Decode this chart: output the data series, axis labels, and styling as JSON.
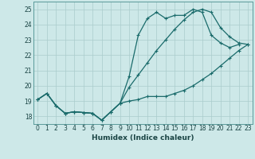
{
  "xlabel": "Humidex (Indice chaleur)",
  "background_color": "#cde8e8",
  "grid_color": "#aacccc",
  "line_color": "#1a6b6b",
  "xlim": [
    -0.5,
    23.5
  ],
  "ylim": [
    17.5,
    25.5
  ],
  "xticks": [
    0,
    1,
    2,
    3,
    4,
    5,
    6,
    7,
    8,
    9,
    10,
    11,
    12,
    13,
    14,
    15,
    16,
    17,
    18,
    19,
    20,
    21,
    22,
    23
  ],
  "yticks": [
    18,
    19,
    20,
    21,
    22,
    23,
    24,
    25
  ],
  "series1_x": [
    0,
    1,
    2,
    3,
    4,
    5,
    6,
    7,
    8,
    9,
    10,
    11,
    12,
    13,
    14,
    15,
    16,
    17,
    18,
    19,
    20,
    21,
    22,
    23
  ],
  "series1_y": [
    19.1,
    19.5,
    18.7,
    18.2,
    18.3,
    18.25,
    18.2,
    17.75,
    18.3,
    18.85,
    19.0,
    19.1,
    19.3,
    19.3,
    19.3,
    19.5,
    19.7,
    20.0,
    20.4,
    20.8,
    21.3,
    21.8,
    22.3,
    22.7
  ],
  "series2_x": [
    0,
    1,
    2,
    3,
    4,
    5,
    6,
    7,
    8,
    9,
    10,
    11,
    12,
    13,
    14,
    15,
    16,
    17,
    18,
    19,
    20,
    21,
    22,
    23
  ],
  "series2_y": [
    19.1,
    19.5,
    18.7,
    18.2,
    18.3,
    18.25,
    18.2,
    17.75,
    18.3,
    18.85,
    20.6,
    23.3,
    24.4,
    24.8,
    24.4,
    24.6,
    24.6,
    25.0,
    24.8,
    23.3,
    22.8,
    22.5,
    22.7,
    null
  ],
  "series3_x": [
    0,
    1,
    2,
    3,
    4,
    5,
    6,
    7,
    8,
    9,
    10,
    11,
    12,
    13,
    14,
    15,
    16,
    17,
    18,
    19,
    20,
    21,
    22,
    23
  ],
  "series3_y": [
    19.1,
    19.5,
    18.7,
    18.2,
    18.3,
    18.25,
    18.2,
    17.75,
    18.3,
    18.85,
    19.9,
    20.7,
    21.5,
    22.3,
    23.0,
    23.7,
    24.3,
    24.8,
    25.0,
    24.8,
    23.8,
    23.2,
    22.8,
    22.7
  ]
}
